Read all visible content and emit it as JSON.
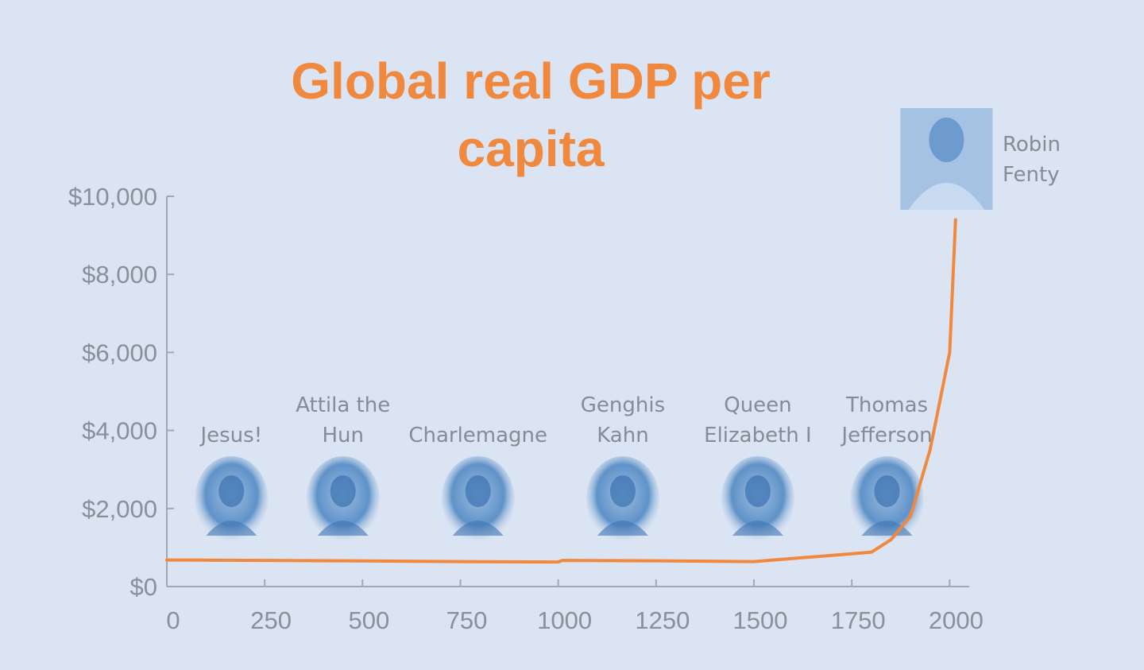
{
  "chart_data": {
    "type": "line",
    "title_lines": [
      "Global real GDP per",
      "capita"
    ],
    "xlabel": "",
    "ylabel": "",
    "xlim": [
      0,
      2050
    ],
    "ylim": [
      0,
      10000
    ],
    "x_ticks": [
      0,
      250,
      500,
      750,
      1000,
      1250,
      1500,
      1750,
      2000
    ],
    "y_ticks": [
      0,
      2000,
      4000,
      6000,
      8000,
      10000
    ],
    "y_tick_labels": [
      "$0",
      "$2,000",
      "$4,000",
      "$6,000",
      "$8,000",
      "$10,000"
    ],
    "grid": false,
    "color": "#f0883e",
    "series": [
      {
        "x": [
          0,
          250,
          500,
          750,
          1000,
          1010,
          1250,
          1500,
          1600,
          1700,
          1800,
          1850,
          1900,
          1950,
          2000,
          2015
        ],
        "y": [
          680,
          670,
          655,
          640,
          630,
          670,
          660,
          640,
          720,
          800,
          880,
          1200,
          1800,
          3500,
          6000,
          9400
        ]
      }
    ],
    "annotations": [
      {
        "lines": [
          "Jesus!"
        ],
        "x": 165,
        "portrait_y": 1100,
        "portrait": "portrait-icon"
      },
      {
        "lines": [
          "Attila the",
          "Hun"
        ],
        "x": 450,
        "portrait_y": 1150,
        "portrait": "portrait-icon"
      },
      {
        "lines": [
          "Charlemagne"
        ],
        "x": 795,
        "portrait_y": 1150,
        "portrait": "portrait-icon"
      },
      {
        "lines": [
          "Genghis",
          "Kahn"
        ],
        "x": 1165,
        "portrait_y": 1150,
        "portrait": "portrait-icon"
      },
      {
        "lines": [
          "Queen",
          "Elizabeth I"
        ],
        "x": 1510,
        "portrait_y": 1150,
        "portrait": "portrait-icon"
      },
      {
        "lines": [
          "Thomas",
          "Jefferson"
        ],
        "x": 1840,
        "portrait_y": 1150,
        "portrait": "portrait-icon"
      },
      {
        "lines": [
          "Robin",
          "Fenty"
        ],
        "x": 2190,
        "portrait_y": 9800,
        "portrait": "portrait-icon"
      }
    ]
  }
}
